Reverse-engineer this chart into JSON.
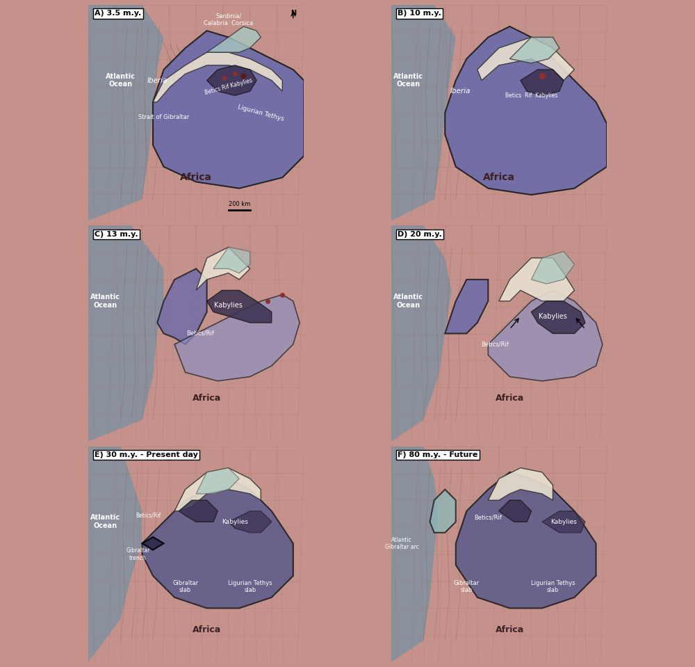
{
  "panels": [
    {
      "label": "A) 3.5 m.y.",
      "col": 0,
      "row": 0
    },
    {
      "label": "B) 10 m.y.",
      "col": 1,
      "row": 0
    },
    {
      "label": "C) 13 m.y.",
      "col": 0,
      "row": 1
    },
    {
      "label": "D) 20 m.y.",
      "col": 1,
      "row": 1
    },
    {
      "label": "E) 30 m.y. - Present day",
      "col": 0,
      "row": 2
    },
    {
      "label": "F) 80 m.y. - Future",
      "col": 1,
      "row": 2
    }
  ],
  "colors": {
    "ocean_blue": "#8faab8",
    "land_pink": "#c4928a",
    "land_dark": "#b07870",
    "tethys_purple": "#6b6aaa",
    "tethys_mid": "#7878bb",
    "slab_purple": "#5a5a9a",
    "iberia_pink": "#c4928a",
    "white_zone": "#e8e0d0",
    "teal_zone": "#a8c8c0",
    "dark_outline": "#1a1a1a",
    "grid_line": "#b08880",
    "contour_line": "#8a6060",
    "dark_red_feature": "#6a2020",
    "crimson": "#8b3030",
    "bg_outer": "#c4928a",
    "atlantic_blue": "#8090a0",
    "slab_light": "#9090c0",
    "future_teal": "#90b8b8"
  },
  "title": "",
  "figsize": [
    10.0,
    9.59
  ]
}
